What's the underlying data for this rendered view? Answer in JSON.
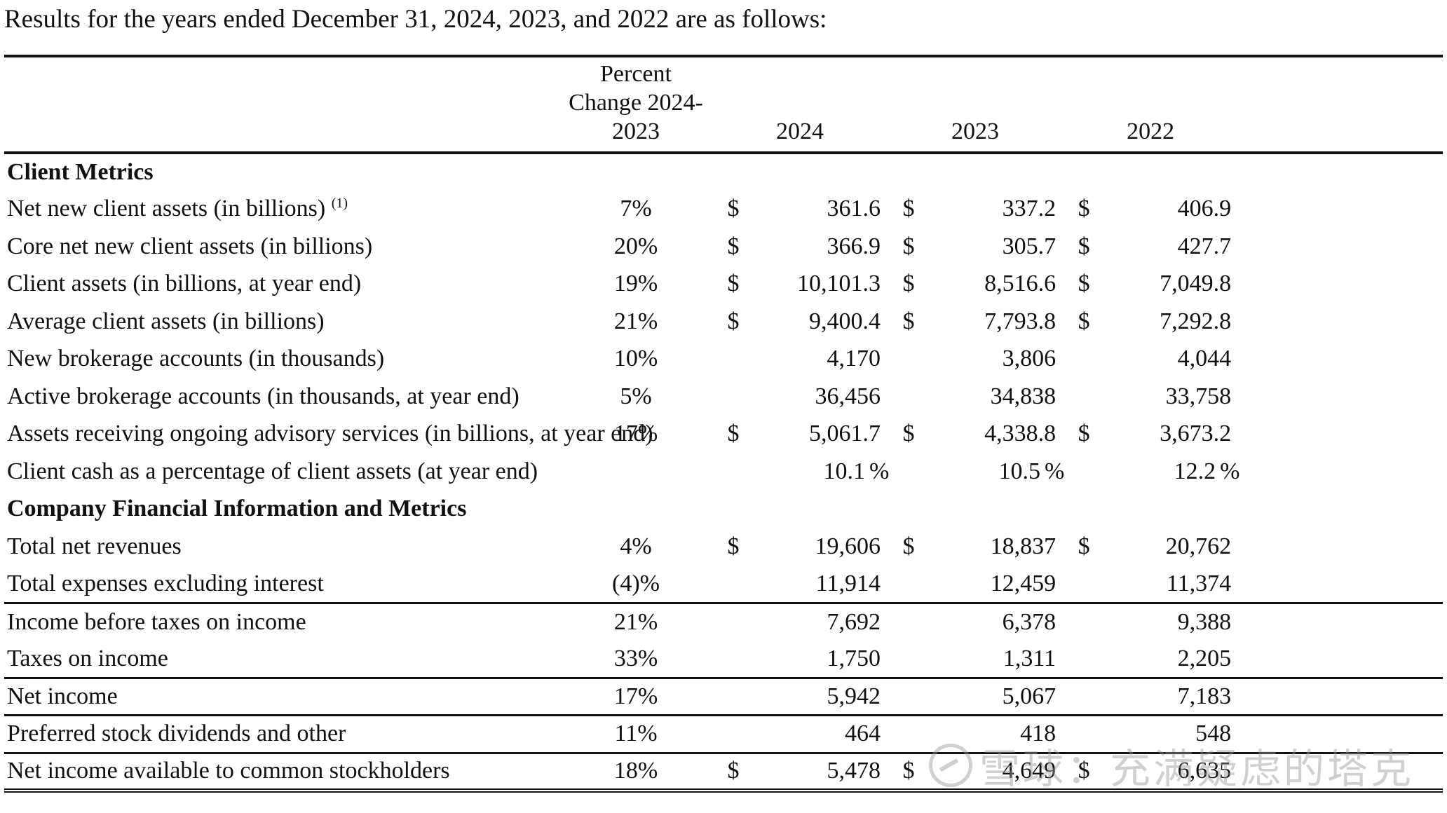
{
  "intro": "Results for the years ended December 31, 2024, 2023, and 2022 are as follows:",
  "header": {
    "pct_line1": "Percent",
    "pct_line2": "Change 2024-",
    "pct_line3": "2023",
    "y2024": "2024",
    "y2023": "2023",
    "y2022": "2022"
  },
  "sections": {
    "client_metrics": "Client Metrics",
    "company_fin": "Company Financial Information and Metrics"
  },
  "rows": [
    {
      "label": "Net new client assets (in billions)",
      "note": "(1)",
      "pct": "7%",
      "d1": "$",
      "v1": "361.6",
      "d2": "$",
      "v2": "337.2",
      "d3": "$",
      "v3": "406.9"
    },
    {
      "label": "Core net new client assets (in billions)",
      "pct": "20%",
      "d1": "$",
      "v1": "366.9",
      "d2": "$",
      "v2": "305.7",
      "d3": "$",
      "v3": "427.7"
    },
    {
      "label": "Client assets (in billions, at year end)",
      "pct": "19%",
      "d1": "$",
      "v1": "10,101.3",
      "d2": "$",
      "v2": "8,516.6",
      "d3": "$",
      "v3": "7,049.8"
    },
    {
      "label": "Average client assets (in billions)",
      "pct": "21%",
      "d1": "$",
      "v1": "9,400.4",
      "d2": "$",
      "v2": "7,793.8",
      "d3": "$",
      "v3": "7,292.8"
    },
    {
      "label": "New brokerage accounts (in thousands)",
      "pct": "10%",
      "v1": "4,170",
      "v2": "3,806",
      "v3": "4,044"
    },
    {
      "label": "Active brokerage accounts (in thousands, at year end)",
      "pct": "5%",
      "v1": "36,456",
      "v2": "34,838",
      "v3": "33,758"
    },
    {
      "label": "Assets receiving ongoing advisory services (in billions, at year end)",
      "pct": "17%",
      "d1": "$",
      "v1": "5,061.7",
      "d2": "$",
      "v2": "4,338.8",
      "d3": "$",
      "v3": "3,673.2"
    },
    {
      "label": "Client cash as a percentage of client assets (at year end)",
      "v1": "10.1",
      "p1": "%",
      "v2": "10.5",
      "p2": "%",
      "v3": "12.2",
      "p3": "%"
    },
    {
      "label": "Total net revenues",
      "pct": "4%",
      "d1": "$",
      "v1": "19,606",
      "d2": "$",
      "v2": "18,837",
      "d3": "$",
      "v3": "20,762"
    },
    {
      "label": "Total expenses excluding interest",
      "pct": "(4)%",
      "v1": "11,914",
      "v2": "12,459",
      "v3": "11,374"
    },
    {
      "label": "Income before taxes on income",
      "pct": "21%",
      "v1": "7,692",
      "v2": "6,378",
      "v3": "9,388"
    },
    {
      "label": "Taxes on income",
      "pct": "33%",
      "v1": "1,750",
      "v2": "1,311",
      "v3": "2,205"
    },
    {
      "label": "Net income",
      "pct": "17%",
      "v1": "5,942",
      "v2": "5,067",
      "v3": "7,183"
    },
    {
      "label": "Preferred stock dividends and other",
      "pct": "11%",
      "v1": "464",
      "v2": "418",
      "v3": "548"
    },
    {
      "label": "Net income available to common stockholders",
      "pct": "18%",
      "d1": "$",
      "v1": "5,478",
      "d2": "$",
      "v2": "4,649",
      "d3": "$",
      "v3": "6,635"
    }
  ],
  "watermark": "雪球：充满疑虑的塔克"
}
